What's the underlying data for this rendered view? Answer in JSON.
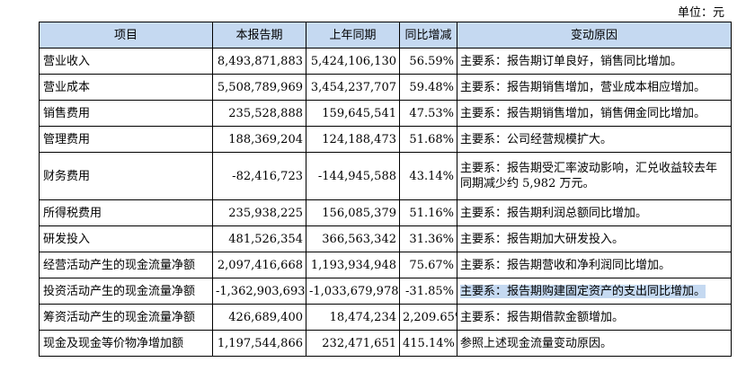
{
  "unit_label": "单位：元",
  "headers": [
    "项目",
    "本报告期",
    "上年同期",
    "同比增减",
    "变动原因"
  ],
  "rows": [
    {
      "item": "营业收入",
      "current": "8,493,871,883",
      "previous": "5,424,106,130",
      "change": "56.59%",
      "reason": "主要系：报告期订单良好，销售同比增加。"
    },
    {
      "item": "营业成本",
      "current": "5,508,789,969",
      "previous": "3,454,237,707",
      "change": "59.48%",
      "reason": "主要系：报告期销售增加，营业成本相应增加。"
    },
    {
      "item": "销售费用",
      "current": "235,528,888",
      "previous": "159,645,541",
      "change": "47.53%",
      "reason": "主要系：报告期销售增加，销售佣金同比增加。"
    },
    {
      "item": "管理费用",
      "current": "188,369,204",
      "previous": "124,188,473",
      "change": "51.68%",
      "reason": "主要系：公司经营规模扩大。"
    },
    {
      "item": "财务费用",
      "current": "-82,416,723",
      "previous": "-144,945,588",
      "change": "43.14%",
      "reason": "主要系：报告期受汇率波动影响，汇兑收益较去年同期减少约 5,982 万元。"
    },
    {
      "item": "所得税费用",
      "current": "235,938,225",
      "previous": "156,085,379",
      "change": "51.16%",
      "reason": "主要系：报告期利润总额同比增加。"
    },
    {
      "item": "研发投入",
      "current": "481,526,354",
      "previous": "366,563,342",
      "change": "31.36%",
      "reason": "主要系：报告期加大研发投入。"
    },
    {
      "item": "经营活动产生的现金流量净额",
      "current": "2,097,416,668",
      "previous": "1,193,934,948",
      "change": "75.67%",
      "reason": "主要系：报告期营收和净利润同比增加。"
    },
    {
      "item": "投资活动产生的现金流量净额",
      "current": "-1,362,903,693",
      "previous": "-1,033,679,978",
      "change": "-31.85%",
      "reason": "主要系：报告期购建固定资产的支出同比增加。"
    },
    {
      "item": "筹资活动产生的现金流量净额",
      "current": "426,689,400",
      "previous": "18,474,234",
      "change": "2,209.65%",
      "reason": "主要系：报告期借款金额增加。"
    },
    {
      "item": "现金及现金等价物净增加额",
      "current": "1,197,544,866",
      "previous": "232,471,651",
      "change": "415.14%",
      "reason": "参照上述现金流量变动原因。"
    }
  ]
}
